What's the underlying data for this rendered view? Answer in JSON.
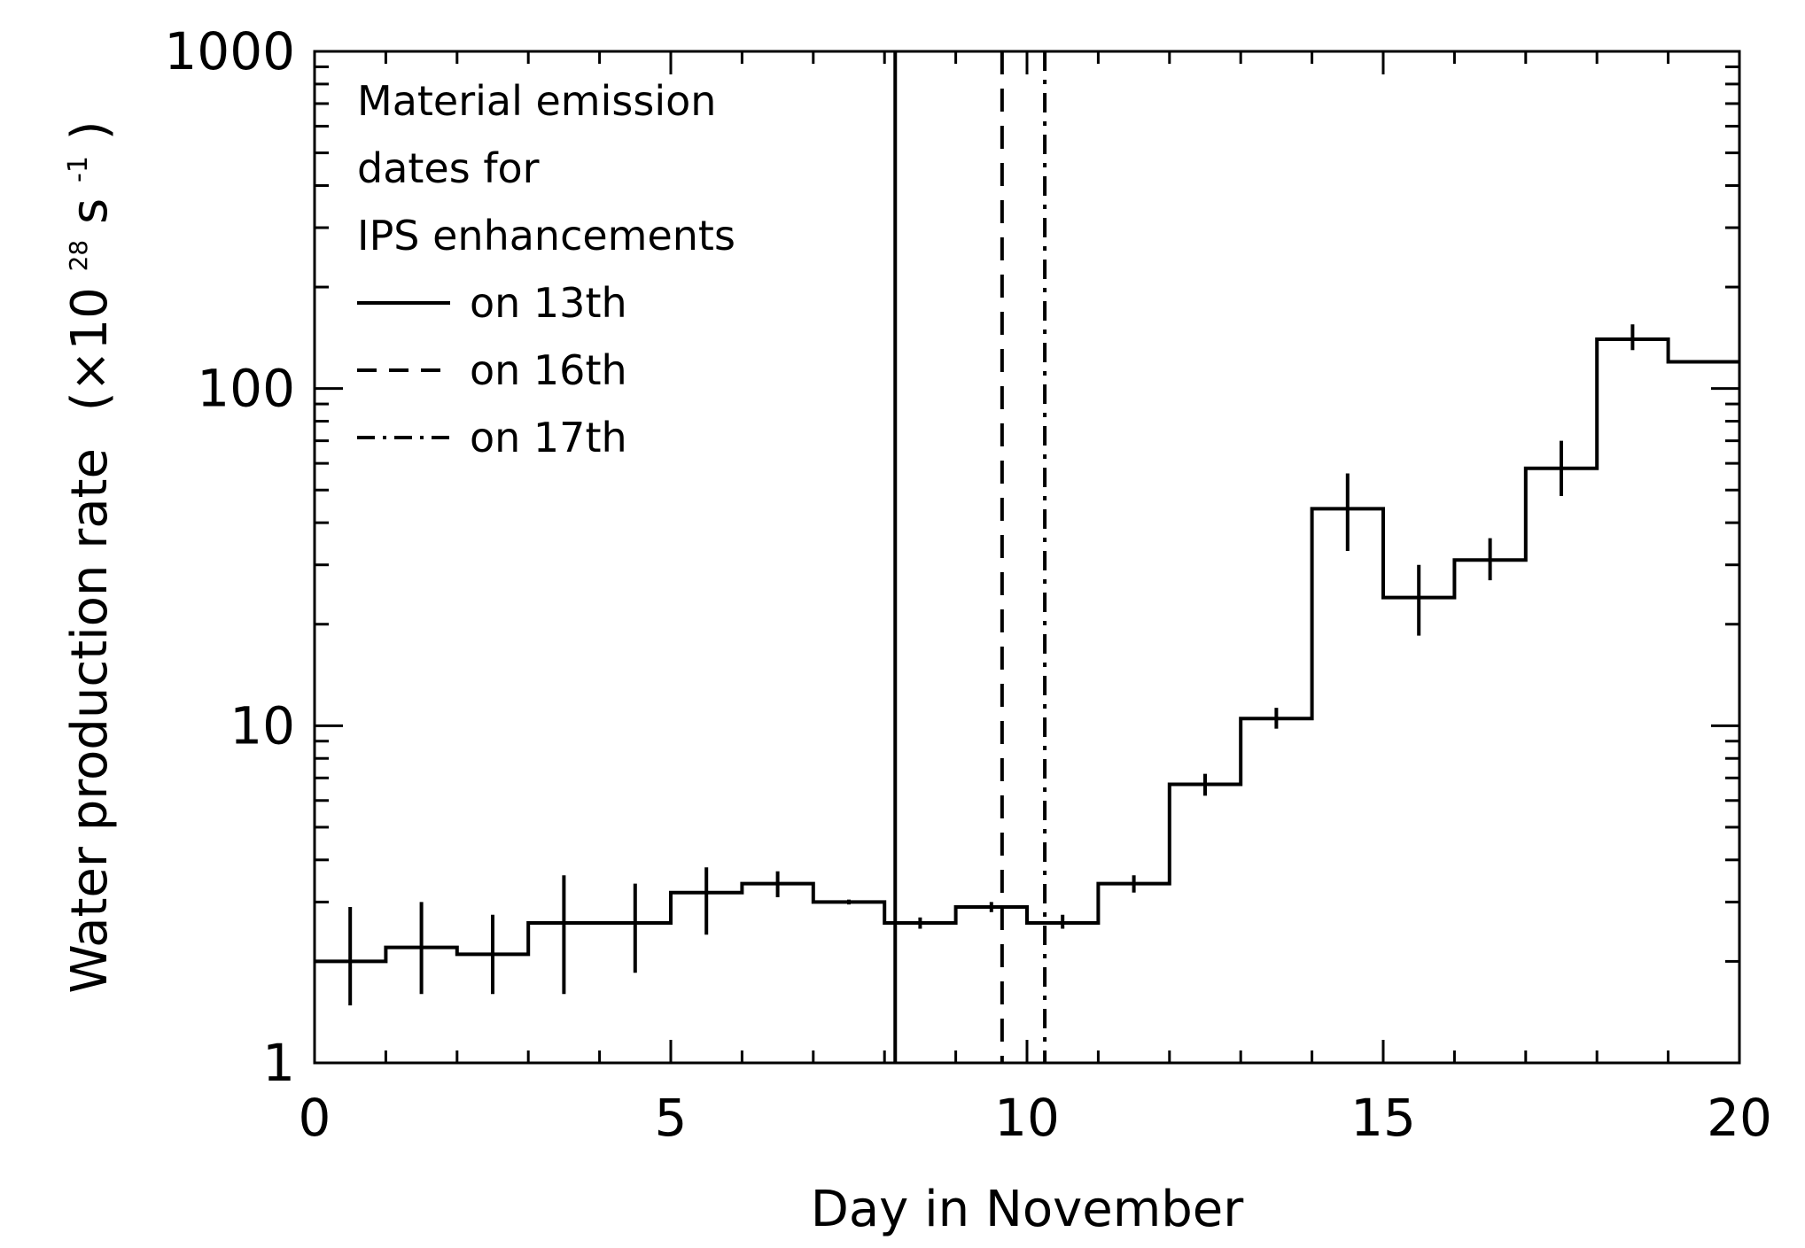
{
  "chart_data": {
    "type": "line",
    "xlabel": "Day in November",
    "ylabel": {
      "main": "Water production rate",
      "unit_open": "(×10",
      "exponent": "28",
      "unit_mid": " s",
      "unit_exponent": "-1",
      "unit_close": ")"
    },
    "xlim": [
      0,
      20
    ],
    "ylim": [
      1,
      1000
    ],
    "yscale": "log",
    "x_ticks": [
      0,
      5,
      10,
      15,
      20
    ],
    "x_tick_labels": [
      "0",
      "5",
      "10",
      "15",
      "20"
    ],
    "y_ticks": [
      1,
      10,
      100,
      1000
    ],
    "y_tick_labels": [
      "1",
      "10",
      "100",
      "1000"
    ],
    "series": [
      {
        "name": "Water production rate",
        "style": "step",
        "bins": [
          [
            0,
            1
          ],
          [
            1,
            2
          ],
          [
            2,
            3
          ],
          [
            3,
            4
          ],
          [
            4,
            5
          ],
          [
            5,
            6
          ],
          [
            6,
            7
          ],
          [
            7,
            8
          ],
          [
            8,
            9
          ],
          [
            9,
            10
          ],
          [
            10,
            11
          ],
          [
            11,
            12
          ],
          [
            12,
            13
          ],
          [
            13,
            14
          ],
          [
            14,
            15
          ],
          [
            15,
            16
          ],
          [
            16,
            17
          ],
          [
            17,
            18
          ],
          [
            18,
            19
          ],
          [
            19,
            20
          ]
        ],
        "x": [
          0.5,
          1.5,
          2.5,
          3.5,
          4.5,
          5.5,
          6.5,
          7.5,
          8.5,
          9.5,
          10.5,
          11.5,
          12.5,
          13.5,
          14.5,
          15.5,
          16.5,
          17.5,
          18.5,
          19.5
        ],
        "values": [
          2.0,
          2.2,
          2.1,
          2.6,
          2.6,
          3.2,
          3.4,
          3.0,
          2.6,
          2.9,
          2.6,
          3.4,
          6.7,
          10.5,
          44,
          24,
          31,
          58,
          140,
          120
        ],
        "err_low": [
          1.48,
          1.6,
          1.6,
          1.6,
          1.85,
          2.4,
          3.1,
          2.95,
          2.5,
          2.8,
          2.5,
          3.2,
          6.2,
          9.8,
          33,
          18.5,
          27,
          48,
          130,
          120
        ],
        "err_high": [
          2.9,
          3.0,
          2.75,
          3.6,
          3.4,
          3.8,
          3.7,
          3.05,
          2.7,
          3.0,
          2.75,
          3.6,
          7.2,
          11.3,
          56,
          30,
          36,
          70,
          155,
          120
        ]
      }
    ],
    "vertical_lines": [
      {
        "x": 8.15,
        "style": "solid",
        "label": "on 13th"
      },
      {
        "x": 9.65,
        "style": "dashed",
        "label": "on 16th"
      },
      {
        "x": 10.25,
        "style": "dashdot",
        "label": "on 17th"
      }
    ],
    "legend": {
      "title_lines": [
        "Material emission",
        "dates for",
        "IPS enhancements"
      ],
      "entries": [
        {
          "label": "on 13th",
          "style": "solid"
        },
        {
          "label": "on 16th",
          "style": "dashed"
        },
        {
          "label": "on 17th",
          "style": "dashdot"
        }
      ],
      "placement": "top-left"
    },
    "grid": false
  },
  "colors": {
    "line": "#000000",
    "background": "#ffffff"
  }
}
